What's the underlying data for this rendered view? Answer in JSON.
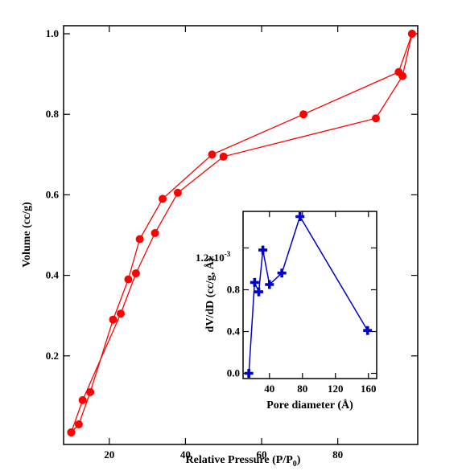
{
  "chart_data": [
    {
      "type": "scatter",
      "title": "",
      "xlabel": "Relative Pressure (P/P",
      "xlabel_sub": "0",
      "xlabel_close": ")",
      "ylabel": "Volume (cc/g)",
      "xlim": [
        8,
        101
      ],
      "ylim": [
        -0.02,
        1.02
      ],
      "xticks": [
        20,
        40,
        60,
        80
      ],
      "yticks": [
        0.2,
        0.4,
        0.6,
        0.8,
        1.0
      ],
      "xtick_labels": [
        "20",
        "40",
        "60",
        "80"
      ],
      "ytick_labels": [
        "0.2",
        "0.4",
        "0.6",
        "0.8",
        "1.0"
      ],
      "grid": false,
      "color": "#ff0000",
      "series": [
        {
          "x": [
            10,
            12,
            15,
            21,
            25,
            28,
            34,
            47,
            71,
            96,
            99.5
          ],
          "y": [
            0.01,
            0.03,
            0.11,
            0.29,
            0.39,
            0.49,
            0.59,
            0.7,
            0.8,
            0.905,
            1.0
          ]
        },
        {
          "x": [
            99.5,
            97,
            90,
            50,
            38,
            32,
            27,
            23,
            13,
            10
          ],
          "y": [
            1.0,
            0.895,
            0.79,
            0.695,
            0.605,
            0.505,
            0.405,
            0.305,
            0.09,
            0.01
          ]
        }
      ]
    },
    {
      "type": "line",
      "title": "",
      "xlabel": "Pore diameter (Å)",
      "ylabel": "dV/dD (cc/g, Å)",
      "xlim": [
        8,
        170
      ],
      "ylim": [
        -5e-05,
        0.00155
      ],
      "xticks": [
        40,
        80,
        120,
        160
      ],
      "yticks": [
        0.0,
        0.0004,
        0.0008,
        0.0012
      ],
      "xtick_labels": [
        "40",
        "80",
        "120",
        "160"
      ],
      "ytick_labels": [
        "0.0",
        "0.4",
        "0.8"
      ],
      "ytick_top_label": "1.2x10",
      "ytick_top_exponent": "-3",
      "grid": false,
      "color": "#0000cc",
      "series": [
        {
          "x": [
            15,
            22,
            27,
            32,
            40,
            55,
            77,
            159
          ],
          "y": [
            0.0,
            0.00087,
            0.00078,
            0.00118,
            0.00085,
            0.00096,
            0.0015,
            0.00041
          ]
        }
      ]
    }
  ]
}
